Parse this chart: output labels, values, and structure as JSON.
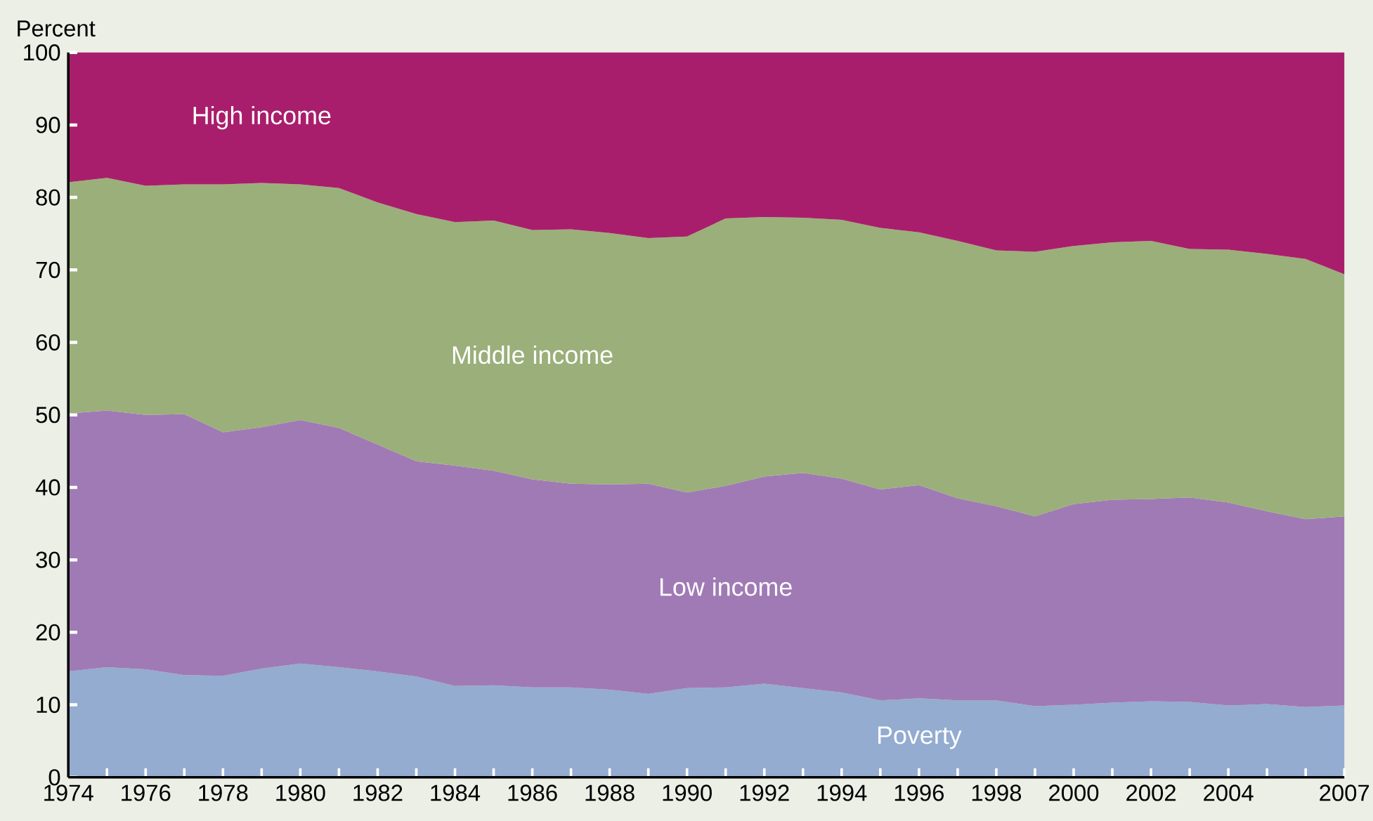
{
  "chart_data": {
    "type": "area",
    "stacked": true,
    "ylabel": "Percent",
    "x": [
      1974,
      1975,
      1976,
      1977,
      1978,
      1979,
      1980,
      1981,
      1982,
      1983,
      1984,
      1985,
      1986,
      1987,
      1988,
      1989,
      1990,
      1991,
      1992,
      1993,
      1994,
      1995,
      1996,
      1997,
      1998,
      1999,
      2000,
      2001,
      2002,
      2003,
      2004,
      2005,
      2006,
      2007
    ],
    "series": [
      {
        "name": "Poverty",
        "color": "#93acd0",
        "values": [
          14.6,
          15.2,
          14.9,
          14.1,
          14.0,
          15.0,
          15.7,
          15.2,
          14.6,
          13.9,
          12.6,
          12.7,
          12.4,
          12.4,
          12.1,
          11.5,
          12.3,
          12.4,
          12.9,
          12.3,
          11.7,
          10.6,
          10.9,
          10.6,
          10.6,
          9.8,
          10.0,
          10.3,
          10.5,
          10.4,
          9.9,
          10.1,
          9.7,
          9.9
        ]
      },
      {
        "name": "Low income",
        "color": "#a07ab5",
        "values": [
          35.6,
          35.4,
          35.1,
          36.0,
          33.6,
          33.3,
          33.6,
          33.0,
          31.3,
          29.7,
          30.4,
          29.6,
          28.7,
          28.1,
          28.3,
          29.0,
          27.0,
          27.8,
          28.6,
          29.7,
          29.5,
          29.1,
          29.4,
          27.9,
          26.8,
          26.2,
          27.7,
          28.0,
          27.9,
          28.2,
          28.0,
          26.6,
          25.9,
          26.1
        ]
      },
      {
        "name": "Middle income",
        "color": "#9baf7a",
        "values": [
          31.9,
          32.1,
          31.6,
          31.7,
          34.2,
          33.7,
          32.5,
          33.1,
          33.4,
          34.1,
          33.6,
          34.5,
          34.4,
          35.1,
          34.7,
          33.9,
          35.3,
          36.9,
          35.8,
          35.2,
          35.7,
          36.1,
          34.9,
          35.5,
          35.3,
          36.5,
          35.6,
          35.5,
          35.6,
          34.3,
          34.9,
          35.5,
          35.9,
          33.4
        ]
      },
      {
        "name": "High income",
        "color": "#a91e6c",
        "values": [
          17.9,
          17.3,
          18.4,
          18.2,
          18.2,
          18.0,
          18.2,
          18.7,
          20.7,
          22.3,
          23.4,
          23.2,
          24.5,
          24.4,
          24.9,
          25.6,
          25.4,
          22.9,
          22.7,
          22.8,
          23.1,
          24.2,
          24.8,
          26.0,
          27.3,
          27.5,
          26.7,
          26.2,
          26.0,
          27.1,
          27.2,
          27.8,
          28.5,
          30.6
        ]
      }
    ],
    "xlim": [
      1974,
      2007
    ],
    "xticks": [
      1974,
      {
        "value": 1975,
        "label": null
      },
      1976,
      {
        "value": 1977,
        "label": null
      },
      1978,
      {
        "value": 1979,
        "label": null
      },
      1980,
      {
        "value": 1981,
        "label": null
      },
      1982,
      {
        "value": 1983,
        "label": null
      },
      1984,
      {
        "value": 1985,
        "label": null
      },
      1986,
      {
        "value": 1987,
        "label": null
      },
      1988,
      {
        "value": 1989,
        "label": null
      },
      1990,
      {
        "value": 1991,
        "label": null
      },
      1992,
      {
        "value": 1993,
        "label": null
      },
      1994,
      {
        "value": 1995,
        "label": null
      },
      1996,
      {
        "value": 1997,
        "label": null
      },
      1998,
      {
        "value": 1999,
        "label": null
      },
      2000,
      {
        "value": 2001,
        "label": null
      },
      2002,
      {
        "value": 2003,
        "label": null
      },
      2004,
      {
        "value": 2005,
        "label": null
      },
      {
        "value": 2006,
        "label": null
      },
      2007
    ],
    "ylim": [
      0,
      100
    ],
    "yticks": [
      0,
      10,
      20,
      30,
      40,
      50,
      60,
      70,
      80,
      90,
      100
    ],
    "grid": false
  }
}
